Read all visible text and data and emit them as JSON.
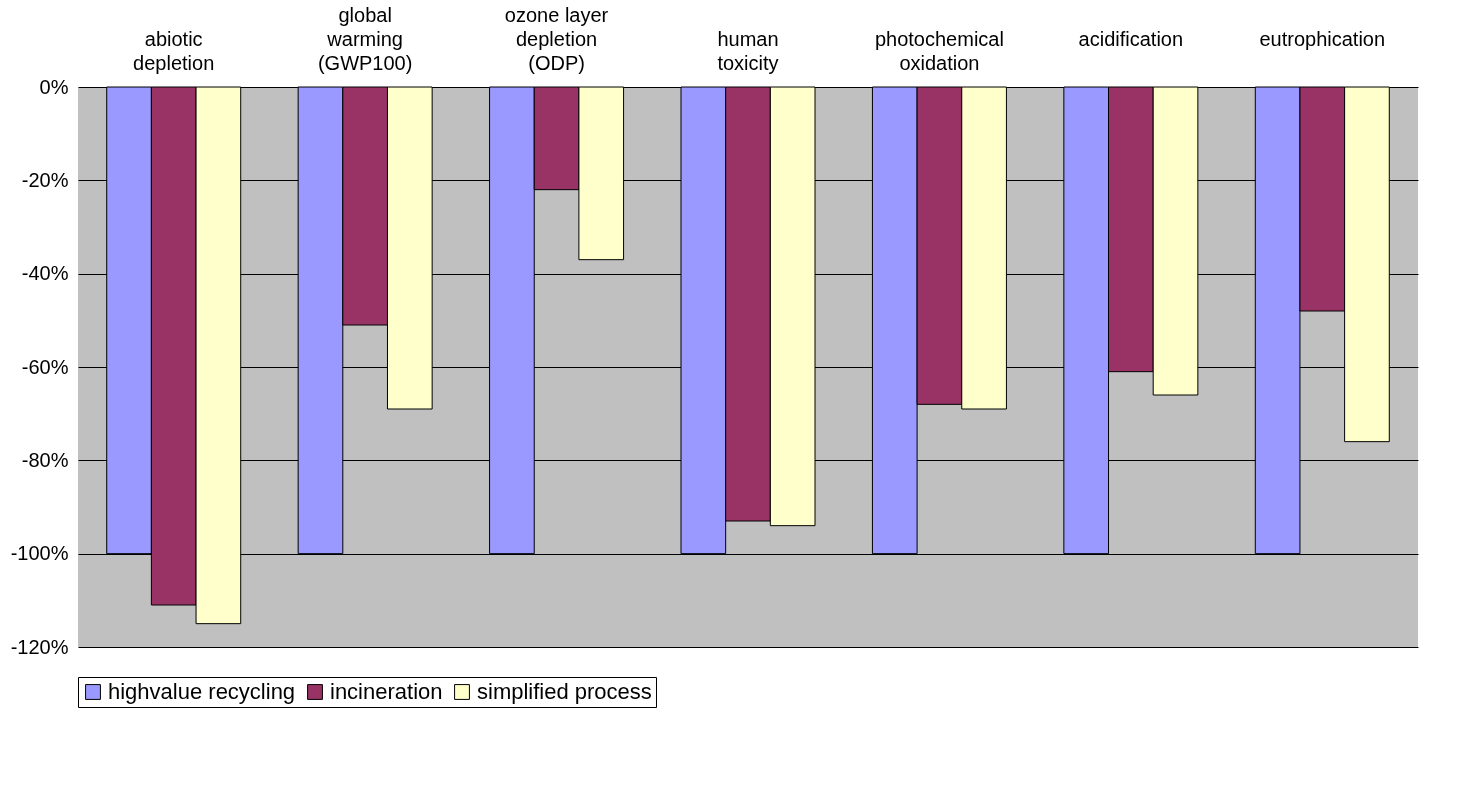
{
  "chart_data": {
    "type": "bar",
    "categories": [
      "abiotic depletion",
      "global warming (GWP100)",
      "ozone layer depletion (ODP)",
      "human toxicity",
      "photochemical oxidation",
      "acidification",
      "eutrophication"
    ],
    "series": [
      {
        "name": "highvalue recycling",
        "color": "#9999ff",
        "values": [
          -100,
          -100,
          -100,
          -100,
          -100,
          -100,
          -100
        ]
      },
      {
        "name": "incineration",
        "color": "#993366",
        "values": [
          -111,
          -51,
          -22,
          -93,
          -68,
          -61,
          -48
        ]
      },
      {
        "name": "simplified process",
        "color": "#ffffcc",
        "values": [
          -115,
          -69,
          -37,
          -94,
          -69,
          -66,
          -76
        ]
      }
    ],
    "ylim": [
      -120,
      0
    ],
    "yticks": [
      {
        "value": 0,
        "label": "0%"
      },
      {
        "value": -20,
        "label": "-20%"
      },
      {
        "value": -40,
        "label": "-40%"
      },
      {
        "value": -60,
        "label": "-60%"
      },
      {
        "value": -80,
        "label": "-80%"
      },
      {
        "value": -100,
        "label": "-100%"
      },
      {
        "value": -120,
        "label": "-120%"
      }
    ],
    "grid": "y",
    "legend": "bottom"
  }
}
